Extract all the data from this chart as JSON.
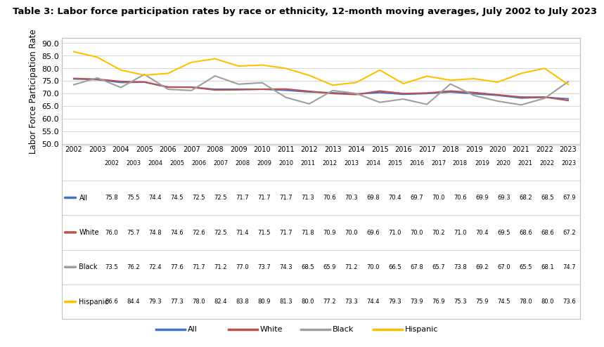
{
  "title": "Table 3: Labor force participation rates by race or ethnicity, 12-month moving averages, July 2002 to July 2023",
  "ylabel": "Labor Force Participation Rate",
  "years": [
    2002,
    2003,
    2004,
    2005,
    2006,
    2007,
    2008,
    2009,
    2010,
    2011,
    2012,
    2013,
    2014,
    2015,
    2016,
    2017,
    2018,
    2019,
    2020,
    2021,
    2022,
    2023
  ],
  "series": {
    "All": [
      75.8,
      75.5,
      74.4,
      74.5,
      72.5,
      72.5,
      71.7,
      71.7,
      71.7,
      71.3,
      70.6,
      70.3,
      69.8,
      70.4,
      69.7,
      70.0,
      70.6,
      69.9,
      69.3,
      68.2,
      68.5,
      67.9
    ],
    "White": [
      76.0,
      75.7,
      74.8,
      74.6,
      72.6,
      72.5,
      71.4,
      71.5,
      71.7,
      71.8,
      70.9,
      70.0,
      69.6,
      71.0,
      70.0,
      70.2,
      71.0,
      70.4,
      69.5,
      68.6,
      68.6,
      67.2
    ],
    "Black": [
      73.5,
      76.2,
      72.4,
      77.6,
      71.7,
      71.2,
      77.0,
      73.7,
      74.3,
      68.5,
      65.9,
      71.2,
      70.0,
      66.5,
      67.8,
      65.7,
      73.8,
      69.2,
      67.0,
      65.5,
      68.1,
      74.7
    ],
    "Hispanic": [
      86.6,
      84.4,
      79.3,
      77.3,
      78.0,
      82.4,
      83.8,
      80.9,
      81.3,
      80.0,
      77.2,
      73.3,
      74.4,
      79.3,
      73.9,
      76.9,
      75.3,
      75.9,
      74.5,
      78.0,
      80.0,
      73.6
    ]
  },
  "colors": {
    "All": "#4472C4",
    "White": "#C0504D",
    "Black": "#9E9E9E",
    "Hispanic": "#FFC000"
  },
  "ylim": [
    50.0,
    92.0
  ],
  "yticks": [
    50.0,
    55.0,
    60.0,
    65.0,
    70.0,
    75.0,
    80.0,
    85.0,
    90.0
  ],
  "background_color": "#FFFFFF",
  "grid_color": "#D0D0D0",
  "table_header_row": [
    "2002",
    "2003",
    "2004",
    "2005",
    "2006",
    "2007",
    "2008",
    "2009",
    "2010",
    "2011",
    "2012",
    "2013",
    "2014",
    "2015",
    "2016",
    "2017",
    "2018",
    "2019",
    "2020",
    "2021",
    "2022",
    "2023"
  ],
  "table_row_labels": [
    "All",
    "White",
    "Black",
    "Hispanic"
  ],
  "table_data": {
    "All": [
      "75.8",
      "75.5",
      "74.4",
      "74.5",
      "72.5",
      "72.5",
      "71.7",
      "71.7",
      "71.7",
      "71.3",
      "70.6",
      "70.3",
      "69.8",
      "70.4",
      "69.7",
      "70.0",
      "70.6",
      "69.9",
      "69.3",
      "68.2",
      "68.5",
      "67.9"
    ],
    "White": [
      "76.0",
      "75.7",
      "74.8",
      "74.6",
      "72.6",
      "72.5",
      "71.4",
      "71.5",
      "71.7",
      "71.8",
      "70.9",
      "70.0",
      "69.6",
      "71.0",
      "70.0",
      "70.2",
      "71.0",
      "70.4",
      "69.5",
      "68.6",
      "68.6",
      "67.2"
    ],
    "Black": [
      "73.5",
      "76.2",
      "72.4",
      "77.6",
      "71.7",
      "71.2",
      "77.0",
      "73.7",
      "74.3",
      "68.5",
      "65.9",
      "71.2",
      "70.0",
      "66.5",
      "67.8",
      "65.7",
      "73.8",
      "69.2",
      "67.0",
      "65.5",
      "68.1",
      "74.7"
    ],
    "Hispanic": [
      "86.6",
      "84.4",
      "79.3",
      "77.3",
      "78.0",
      "82.4",
      "83.8",
      "80.9",
      "81.3",
      "80.0",
      "77.2",
      "73.3",
      "74.4",
      "79.3",
      "73.9",
      "76.9",
      "75.3",
      "75.9",
      "74.5",
      "78.0",
      "80.0",
      "73.6"
    ]
  }
}
